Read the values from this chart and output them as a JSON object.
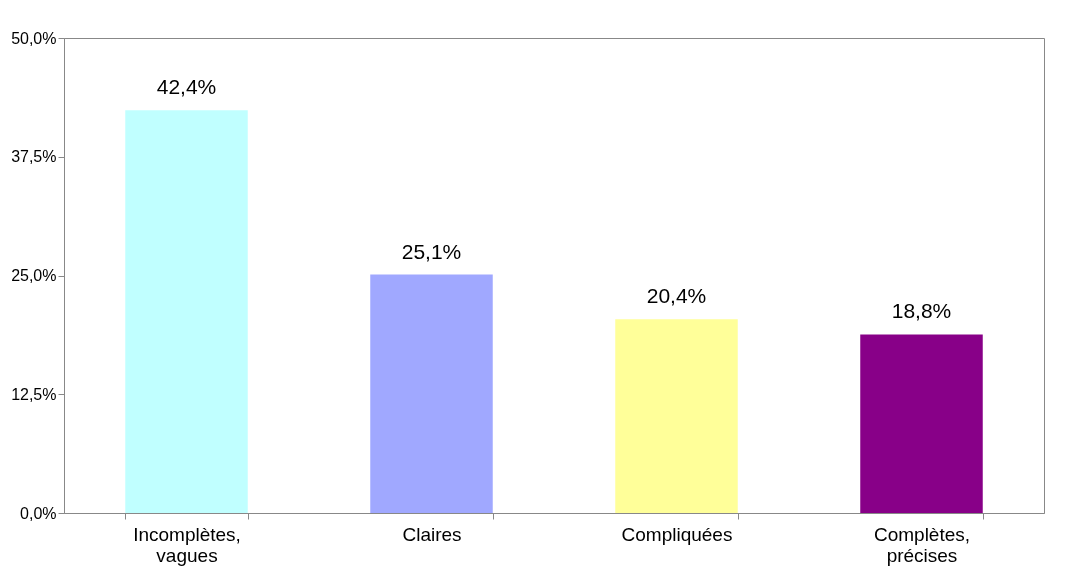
{
  "chart_data": {
    "type": "bar",
    "categories": [
      "Incomplètes, vagues",
      "Claires",
      "Compliquées",
      "Complètes, précises"
    ],
    "values": [
      42.4,
      25.1,
      20.4,
      18.8
    ],
    "colors": [
      "#c0ffff",
      "#a0a8ff",
      "#ffff99",
      "#880088"
    ],
    "value_labels": [
      "42,4%",
      "25,1%",
      "20,4%",
      "18,8%"
    ],
    "ylim": [
      0,
      50
    ],
    "yticks": [
      {
        "value": 0,
        "label": "0,0%"
      },
      {
        "value": 12.5,
        "label": "12,5%"
      },
      {
        "value": 25,
        "label": "25,0%"
      },
      {
        "value": 37.5,
        "label": "37,5%"
      },
      {
        "value": 50,
        "label": "50,0%"
      }
    ],
    "grid": false,
    "legend": false
  }
}
